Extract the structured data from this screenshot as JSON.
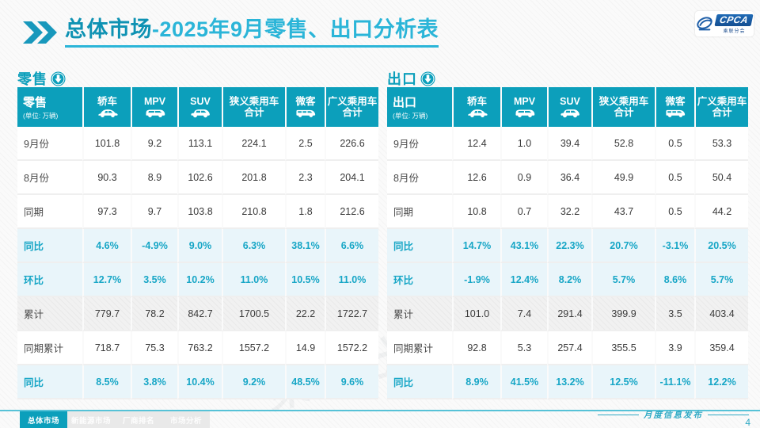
{
  "header": {
    "title_strong": "总体市场",
    "title_rest": "-2025年9月零售、出口分析表",
    "logo": {
      "text": "CPCA",
      "subtext": "乘联分会"
    }
  },
  "colors": {
    "accent_teal": "#0C9FBB",
    "title_light": "#2BB5D8",
    "rate_text": "#17A6C6",
    "rate_row_bg": "#E9F5FA",
    "cumulative_row_bg": "#F1F1F1",
    "footer_line": "#57C2D7"
  },
  "watermark_text": "乘联分会",
  "tables": [
    {
      "section_label": "零售",
      "section_icon": "down-arrow-circle-icon",
      "corner_title": "零售",
      "unit": "(单位: 万辆)",
      "columns": [
        {
          "title": "轿车",
          "icon": "sedan-icon"
        },
        {
          "title": "MPV",
          "icon": "mpv-icon"
        },
        {
          "title": "SUV",
          "icon": "suv-icon"
        },
        {
          "title": "狭义乘用车",
          "subtitle": "合计",
          "icon": null
        },
        {
          "title": "微客",
          "icon": "minibus-icon"
        },
        {
          "title": "广义乘用车",
          "subtitle": "合计",
          "icon": null
        }
      ],
      "rows": [
        {
          "label": "9月份",
          "style": "plain",
          "values": [
            "101.8",
            "9.2",
            "113.1",
            "224.1",
            "2.5",
            "226.6"
          ]
        },
        {
          "label": "8月份",
          "style": "plain",
          "values": [
            "90.3",
            "8.9",
            "102.6",
            "201.8",
            "2.3",
            "204.1"
          ]
        },
        {
          "label": "同期",
          "style": "plain",
          "values": [
            "97.3",
            "9.7",
            "103.8",
            "210.8",
            "1.8",
            "212.6"
          ]
        },
        {
          "label": "同比",
          "style": "rate",
          "values": [
            "4.6%",
            "-4.9%",
            "9.0%",
            "6.3%",
            "38.1%",
            "6.6%"
          ]
        },
        {
          "label": "环比",
          "style": "rate",
          "values": [
            "12.7%",
            "3.5%",
            "10.2%",
            "11.0%",
            "10.5%",
            "11.0%"
          ]
        },
        {
          "label": "累计",
          "style": "cumulative",
          "values": [
            "779.7",
            "78.2",
            "842.7",
            "1700.5",
            "22.2",
            "1722.7"
          ]
        },
        {
          "label": "同期累计",
          "style": "plain",
          "values": [
            "718.7",
            "75.3",
            "763.2",
            "1557.2",
            "14.9",
            "1572.2"
          ]
        },
        {
          "label": "同比",
          "style": "rate",
          "values": [
            "8.5%",
            "3.8%",
            "10.4%",
            "9.2%",
            "48.5%",
            "9.6%"
          ]
        }
      ]
    },
    {
      "section_label": "出口",
      "section_icon": "down-arrow-circle-icon",
      "corner_title": "出口",
      "unit": "(单位: 万辆)",
      "columns": [
        {
          "title": "轿车",
          "icon": "sedan-icon"
        },
        {
          "title": "MPV",
          "icon": "mpv-icon"
        },
        {
          "title": "SUV",
          "icon": "suv-icon"
        },
        {
          "title": "狭义乘用车",
          "subtitle": "合计",
          "icon": null
        },
        {
          "title": "微客",
          "icon": "minibus-icon"
        },
        {
          "title": "广义乘用车",
          "subtitle": "合计",
          "icon": null
        }
      ],
      "rows": [
        {
          "label": "9月份",
          "style": "plain",
          "values": [
            "12.4",
            "1.0",
            "39.4",
            "52.8",
            "0.5",
            "53.3"
          ]
        },
        {
          "label": "8月份",
          "style": "plain",
          "values": [
            "12.6",
            "0.9",
            "36.4",
            "49.9",
            "0.5",
            "50.4"
          ]
        },
        {
          "label": "同期",
          "style": "plain",
          "values": [
            "10.8",
            "0.7",
            "32.2",
            "43.7",
            "0.5",
            "44.2"
          ]
        },
        {
          "label": "同比",
          "style": "rate",
          "values": [
            "14.7%",
            "43.1%",
            "22.3%",
            "20.7%",
            "-3.1%",
            "20.5%"
          ]
        },
        {
          "label": "环比",
          "style": "rate",
          "values": [
            "-1.9%",
            "12.4%",
            "8.2%",
            "5.7%",
            "8.6%",
            "5.7%"
          ]
        },
        {
          "label": "累计",
          "style": "cumulative",
          "values": [
            "101.0",
            "7.4",
            "291.4",
            "399.9",
            "3.5",
            "403.4"
          ]
        },
        {
          "label": "同期累计",
          "style": "plain",
          "values": [
            "92.8",
            "5.3",
            "257.4",
            "355.5",
            "3.9",
            "359.4"
          ]
        },
        {
          "label": "同比",
          "style": "rate",
          "values": [
            "8.9%",
            "41.5%",
            "13.2%",
            "12.5%",
            "-11.1%",
            "12.2%"
          ]
        }
      ]
    }
  ],
  "footer": {
    "tabs": [
      {
        "label": "总体市场",
        "active": true
      },
      {
        "label": "新能源市场",
        "active": false
      },
      {
        "label": "厂商排名",
        "active": false
      },
      {
        "label": "市场分析",
        "active": false
      }
    ],
    "note": "月度信息发布",
    "page_number": "4"
  }
}
